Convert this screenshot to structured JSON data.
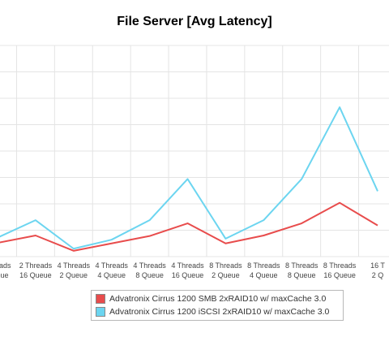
{
  "chart_data": {
    "type": "line",
    "title": "File Server [Avg Latency]",
    "categories": [
      [
        "Threads",
        "Queue"
      ],
      [
        "2 Threads",
        "16 Queue"
      ],
      [
        "4 Threads",
        "2 Queue"
      ],
      [
        "4 Threads",
        "4 Queue"
      ],
      [
        "4 Threads",
        "8 Queue"
      ],
      [
        "4 Threads",
        "16 Queue"
      ],
      [
        "8 Threads",
        "2 Queue"
      ],
      [
        "8 Threads",
        "4 Queue"
      ],
      [
        "8 Threads",
        "8 Queue"
      ],
      [
        "8 Threads",
        "16 Queue"
      ],
      [
        "16 T",
        "2 Q"
      ]
    ],
    "grid": true,
    "legend_position": "bottom",
    "series": [
      {
        "name": "Advatronix Cirrus 1200 SMB 2xRAID10 w/ maxCache 3.0",
        "color": "#e84c4c",
        "values": [
          26,
          40,
          11,
          25,
          39,
          63,
          25,
          40,
          63,
          102,
          59
        ]
      },
      {
        "name": "Advatronix Cirrus 1200 iSCSI 2xRAID10 w/ maxCache 3.0",
        "color": "#6cd5f0",
        "values": [
          36,
          69,
          15,
          32,
          69,
          147,
          34,
          69,
          147,
          283,
          124
        ]
      }
    ]
  }
}
